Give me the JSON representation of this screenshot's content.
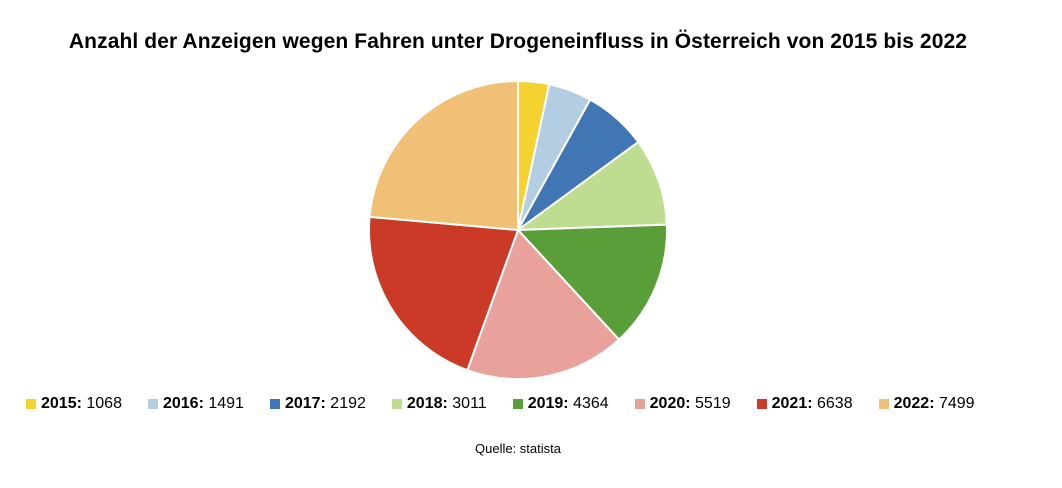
{
  "chart_data": {
    "type": "pie",
    "title": "Anzahl der Anzeigen wegen Fahren unter Drogeneinfluss in Österreich von 2015 bis 2022",
    "categories": [
      "2015",
      "2016",
      "2017",
      "2018",
      "2019",
      "2020",
      "2021",
      "2022"
    ],
    "values": [
      1068,
      1491,
      2192,
      3011,
      4364,
      5519,
      6638,
      7499
    ],
    "colors": [
      "#f4d230",
      "#b3cde3",
      "#3f76b3",
      "#bfdd90",
      "#5a9e3a",
      "#e8a19b",
      "#ca3a26",
      "#f0c077"
    ],
    "legend_position": "bottom",
    "source": "Quelle: statista"
  }
}
